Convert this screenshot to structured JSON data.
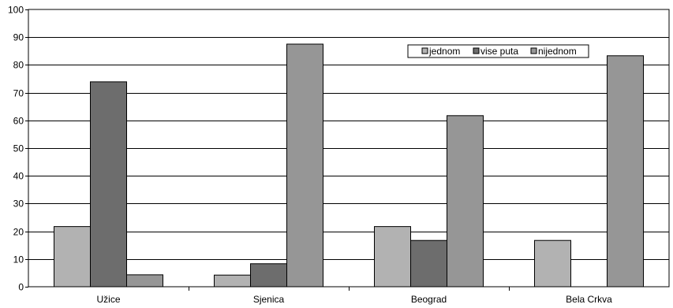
{
  "chart_data": {
    "type": "bar",
    "categories": [
      "Užice",
      "Sjenica",
      "Beograd",
      "Bela Crkva"
    ],
    "series": [
      {
        "name": "jednom",
        "values": [
          21.7,
          4.2,
          21.7,
          16.7
        ],
        "color": "#b2b2b2"
      },
      {
        "name": "vise puta",
        "values": [
          73.9,
          8.3,
          16.7,
          0
        ],
        "color": "#6d6d6d"
      },
      {
        "name": "nijednom",
        "values": [
          4.3,
          87.5,
          61.7,
          83.3
        ],
        "color": "#969696"
      }
    ],
    "ylim": [
      0,
      100
    ],
    "yticks": [
      0,
      10,
      20,
      30,
      40,
      50,
      60,
      70,
      80,
      90,
      100
    ],
    "grid": true,
    "legend_position": "top-right",
    "background": "#ffffff",
    "border_color": "#000000",
    "grid_color": "#000000"
  }
}
